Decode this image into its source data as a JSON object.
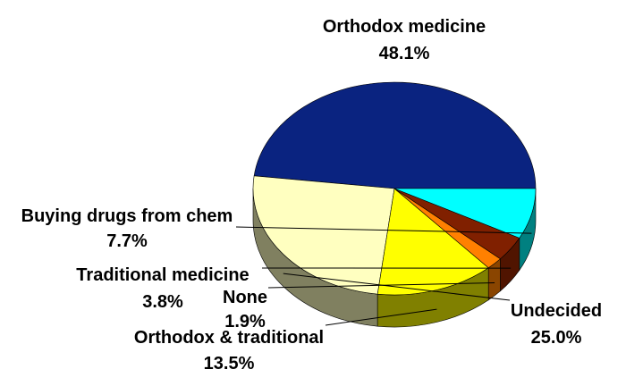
{
  "chart_data": {
    "type": "pie",
    "three_d": true,
    "legend": "none",
    "slices": [
      {
        "label": "Orthodox medicine",
        "value": 48.1,
        "value_label": "48.1%",
        "color": "#0A2380",
        "side_color": "#061752"
      },
      {
        "label": "Undecided",
        "value": 25.0,
        "value_label": "25.0%",
        "color": "#FFFFC0",
        "side_color": "#808060"
      },
      {
        "label": "Orthodox & traditional",
        "value": 13.5,
        "value_label": "13.5%",
        "color": "#FFFF00",
        "side_color": "#808000"
      },
      {
        "label": "None",
        "value": 1.9,
        "value_label": "1.9%",
        "color": "#FF8000",
        "side_color": "#8A4500"
      },
      {
        "label": "Traditional medicine",
        "value": 3.8,
        "value_label": "3.8%",
        "color": "#802000",
        "side_color": "#501400"
      },
      {
        "label": "Buying drugs from chem",
        "value": 7.7,
        "value_label": "7.7%",
        "color": "#00FFFF",
        "side_color": "#008080"
      }
    ]
  }
}
